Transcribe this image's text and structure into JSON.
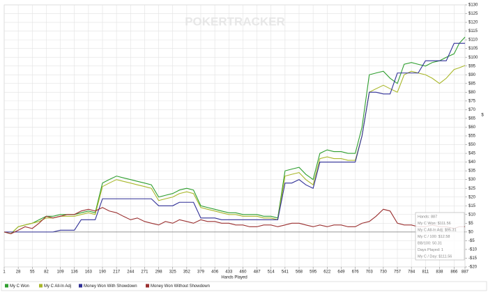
{
  "chart_data": {
    "type": "line",
    "watermark": "POKERTRACKER",
    "x_label": "Hands Played",
    "y_label": "$",
    "x": [
      1,
      14,
      28,
      41,
      55,
      68,
      82,
      95,
      109,
      122,
      136,
      149,
      163,
      176,
      190,
      203,
      217,
      230,
      244,
      257,
      271,
      284,
      298,
      311,
      325,
      338,
      352,
      365,
      379,
      392,
      406,
      419,
      433,
      446,
      460,
      473,
      487,
      500,
      514,
      527,
      541,
      554,
      568,
      581,
      595,
      608,
      622,
      635,
      649,
      662,
      676,
      689,
      703,
      716,
      730,
      743,
      757,
      770,
      784,
      797,
      811,
      824,
      838,
      851,
      866,
      876,
      887
    ],
    "series": [
      {
        "name": "My C Won",
        "color": "#2e9e2e",
        "values": [
          0,
          -1,
          3,
          4,
          5,
          7,
          9,
          9,
          10,
          10,
          10,
          11,
          12,
          11,
          28,
          30,
          32,
          31,
          30,
          29,
          28,
          27,
          20,
          21,
          22,
          24,
          25,
          24,
          15,
          14,
          13,
          12,
          11,
          11,
          10,
          10,
          10,
          9,
          9,
          8,
          35,
          36,
          37,
          33,
          30,
          45,
          47,
          46,
          46,
          45,
          45,
          60,
          90,
          91,
          92,
          88,
          85,
          96,
          97,
          96,
          95,
          97,
          98,
          100,
          102,
          108,
          111.56
        ]
      },
      {
        "name": "My C All-In Adj",
        "color": "#a9b72a",
        "values": [
          0,
          -1,
          3,
          4,
          5,
          6,
          8,
          8,
          9,
          9,
          9,
          10,
          11,
          10,
          26,
          28,
          30,
          29,
          28,
          27,
          26,
          25,
          18,
          19,
          20,
          22,
          23,
          22,
          14,
          13,
          12,
          11,
          10,
          10,
          9,
          9,
          9,
          8,
          8,
          7,
          32,
          33,
          34,
          30,
          27,
          42,
          43,
          42,
          42,
          41,
          41,
          55,
          80,
          82,
          84,
          82,
          80,
          90,
          92,
          91,
          90,
          88,
          85,
          88,
          93,
          94,
          95.31
        ]
      },
      {
        "name": "Money Won With Showdown",
        "color": "#2f2f96",
        "values": [
          0,
          0,
          0,
          0,
          0,
          0,
          0,
          0,
          1,
          1,
          1,
          7,
          7,
          7,
          19,
          19,
          19,
          19,
          19,
          19,
          19,
          19,
          15,
          15,
          15,
          17,
          17,
          17,
          8,
          8,
          8,
          7,
          7,
          7,
          7,
          7,
          7,
          7,
          7,
          7,
          28,
          28,
          30,
          27,
          25,
          40,
          40,
          40,
          40,
          40,
          40,
          55,
          80,
          80,
          79,
          79,
          91,
          91,
          91,
          91,
          98,
          98,
          98,
          98,
          108,
          108,
          108
        ]
      },
      {
        "name": "Money Won Without Showdown",
        "color": "#9a2f2f",
        "values": [
          0,
          -1,
          1,
          3,
          2,
          5,
          9,
          8,
          9,
          10,
          10,
          12,
          13,
          12,
          14,
          12,
          11,
          9,
          7,
          8,
          6,
          5,
          4,
          6,
          5,
          7,
          6,
          5,
          7,
          6,
          6,
          5,
          5,
          4,
          4,
          3,
          3,
          4,
          4,
          3,
          4,
          5,
          5,
          4,
          3,
          4,
          3,
          4,
          4,
          3,
          3,
          5,
          6,
          9,
          13,
          12,
          5,
          4,
          4,
          3,
          3,
          4,
          3,
          3,
          2,
          3,
          3
        ]
      }
    ],
    "xlim": [
      1,
      887
    ],
    "ylim": [
      -20,
      130
    ],
    "xticks": [
      1,
      28,
      55,
      82,
      109,
      136,
      163,
      190,
      217,
      244,
      271,
      298,
      325,
      352,
      379,
      406,
      433,
      460,
      487,
      514,
      541,
      568,
      595,
      622,
      649,
      676,
      703,
      730,
      757,
      784,
      811,
      838,
      866,
      887
    ],
    "yticks": [
      {
        "value": 130,
        "label": "$130"
      },
      {
        "value": 125,
        "label": "$125"
      },
      {
        "value": 120,
        "label": "$120"
      },
      {
        "value": 115,
        "label": "$115"
      },
      {
        "value": 110,
        "label": "$110"
      },
      {
        "value": 105,
        "label": "$105"
      },
      {
        "value": 100,
        "label": "$100"
      },
      {
        "value": 95,
        "label": "$95"
      },
      {
        "value": 90,
        "label": "$90"
      },
      {
        "value": 85,
        "label": "$85"
      },
      {
        "value": 80,
        "label": "$80"
      },
      {
        "value": 75,
        "label": "$75"
      },
      {
        "value": 70,
        "label": "$70"
      },
      {
        "value": 65,
        "label": "$65"
      },
      {
        "value": 60,
        "label": "$60"
      },
      {
        "value": 55,
        "label": "$55"
      },
      {
        "value": 50,
        "label": "$50"
      },
      {
        "value": 45,
        "label": "$45"
      },
      {
        "value": 40,
        "label": "$40"
      },
      {
        "value": 35,
        "label": "$35"
      },
      {
        "value": 30,
        "label": "$30"
      },
      {
        "value": 25,
        "label": "$25"
      },
      {
        "value": 20,
        "label": "$20"
      },
      {
        "value": 15,
        "label": "$15"
      },
      {
        "value": 10,
        "label": "$10"
      },
      {
        "value": 5,
        "label": "$5"
      },
      {
        "value": 0,
        "label": "$0"
      },
      {
        "value": -5,
        "label": "-$5"
      },
      {
        "value": -10,
        "label": "-$10"
      },
      {
        "value": -15,
        "label": "-$15"
      },
      {
        "value": -20,
        "label": "-$20"
      }
    ],
    "grid": true,
    "tooltip": [
      "Hands: 887",
      "My C Won: $111.56",
      "My C All-In Adj: $95.31",
      "My C / 100: $12.58",
      "BB/100: 50.31",
      "Days Played: 1",
      "My C / Day: $111.56"
    ]
  }
}
